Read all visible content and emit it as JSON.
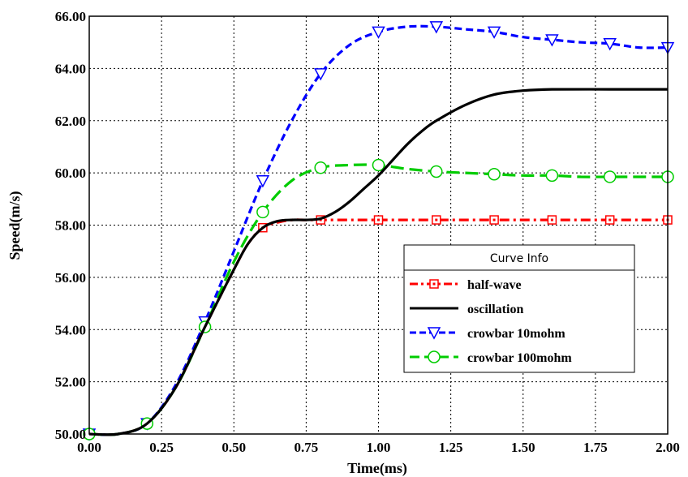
{
  "chart_data": {
    "type": "line",
    "xlabel": "Time(ms)",
    "ylabel": "Speed(m/s)",
    "xlim": [
      0,
      2
    ],
    "ylim": [
      50,
      66
    ],
    "x_ticks": [
      "0.00",
      "0.25",
      "0.50",
      "0.75",
      "1.00",
      "1.25",
      "1.50",
      "1.75",
      "2.00"
    ],
    "y_ticks": [
      "50.00",
      "52.00",
      "54.00",
      "56.00",
      "58.00",
      "60.00",
      "62.00",
      "64.00",
      "66.00"
    ],
    "grid": true,
    "legend": {
      "title": "Curve Info",
      "placement": "right"
    },
    "series": [
      {
        "name": "half-wave",
        "color": "#ff0000",
        "marker": "square",
        "x": [
          0.0,
          0.1,
          0.2,
          0.3,
          0.4,
          0.5,
          0.55,
          0.6,
          0.65,
          0.7,
          0.75,
          0.8,
          0.9,
          1.0,
          1.2,
          1.4,
          1.6,
          1.8,
          2.0
        ],
        "y": [
          50.0,
          50.0,
          50.4,
          51.8,
          54.1,
          56.3,
          57.3,
          57.9,
          58.1,
          58.2,
          58.2,
          58.2,
          58.2,
          58.2,
          58.2,
          58.2,
          58.2,
          58.2,
          58.2
        ]
      },
      {
        "name": "oscillation",
        "color": "#000000",
        "marker": "none",
        "x": [
          0.0,
          0.1,
          0.2,
          0.3,
          0.4,
          0.5,
          0.55,
          0.6,
          0.65,
          0.7,
          0.75,
          0.8,
          0.85,
          0.9,
          0.95,
          1.0,
          1.05,
          1.1,
          1.15,
          1.2,
          1.3,
          1.4,
          1.5,
          1.6,
          1.8,
          2.0
        ],
        "y": [
          50.0,
          50.0,
          50.4,
          51.8,
          54.1,
          56.3,
          57.3,
          57.9,
          58.15,
          58.2,
          58.2,
          58.25,
          58.5,
          58.9,
          59.4,
          59.9,
          60.5,
          61.1,
          61.6,
          62.0,
          62.6,
          63.0,
          63.15,
          63.2,
          63.2,
          63.2
        ]
      },
      {
        "name": "crowbar 10mohm",
        "color": "#0000ff",
        "marker": "triangle-down",
        "x": [
          0.0,
          0.1,
          0.2,
          0.3,
          0.4,
          0.5,
          0.6,
          0.7,
          0.8,
          0.9,
          1.0,
          1.1,
          1.2,
          1.3,
          1.4,
          1.5,
          1.6,
          1.7,
          1.8,
          1.9,
          2.0
        ],
        "y": [
          50.0,
          50.0,
          50.4,
          51.9,
          54.3,
          57.0,
          59.7,
          62.0,
          63.8,
          64.9,
          65.4,
          65.6,
          65.6,
          65.5,
          65.4,
          65.2,
          65.1,
          65.0,
          64.95,
          64.8,
          64.8
        ]
      },
      {
        "name": "crowbar 100mohm",
        "color": "#00cc00",
        "marker": "circle",
        "x": [
          0.0,
          0.1,
          0.2,
          0.3,
          0.4,
          0.5,
          0.6,
          0.7,
          0.8,
          0.9,
          1.0,
          1.1,
          1.2,
          1.3,
          1.4,
          1.5,
          1.6,
          1.7,
          1.8,
          1.9,
          2.0
        ],
        "y": [
          50.0,
          50.0,
          50.4,
          51.8,
          54.1,
          56.6,
          58.5,
          59.7,
          60.2,
          60.3,
          60.3,
          60.15,
          60.05,
          60.0,
          59.95,
          59.9,
          59.9,
          59.85,
          59.85,
          59.85,
          59.85
        ]
      }
    ]
  }
}
